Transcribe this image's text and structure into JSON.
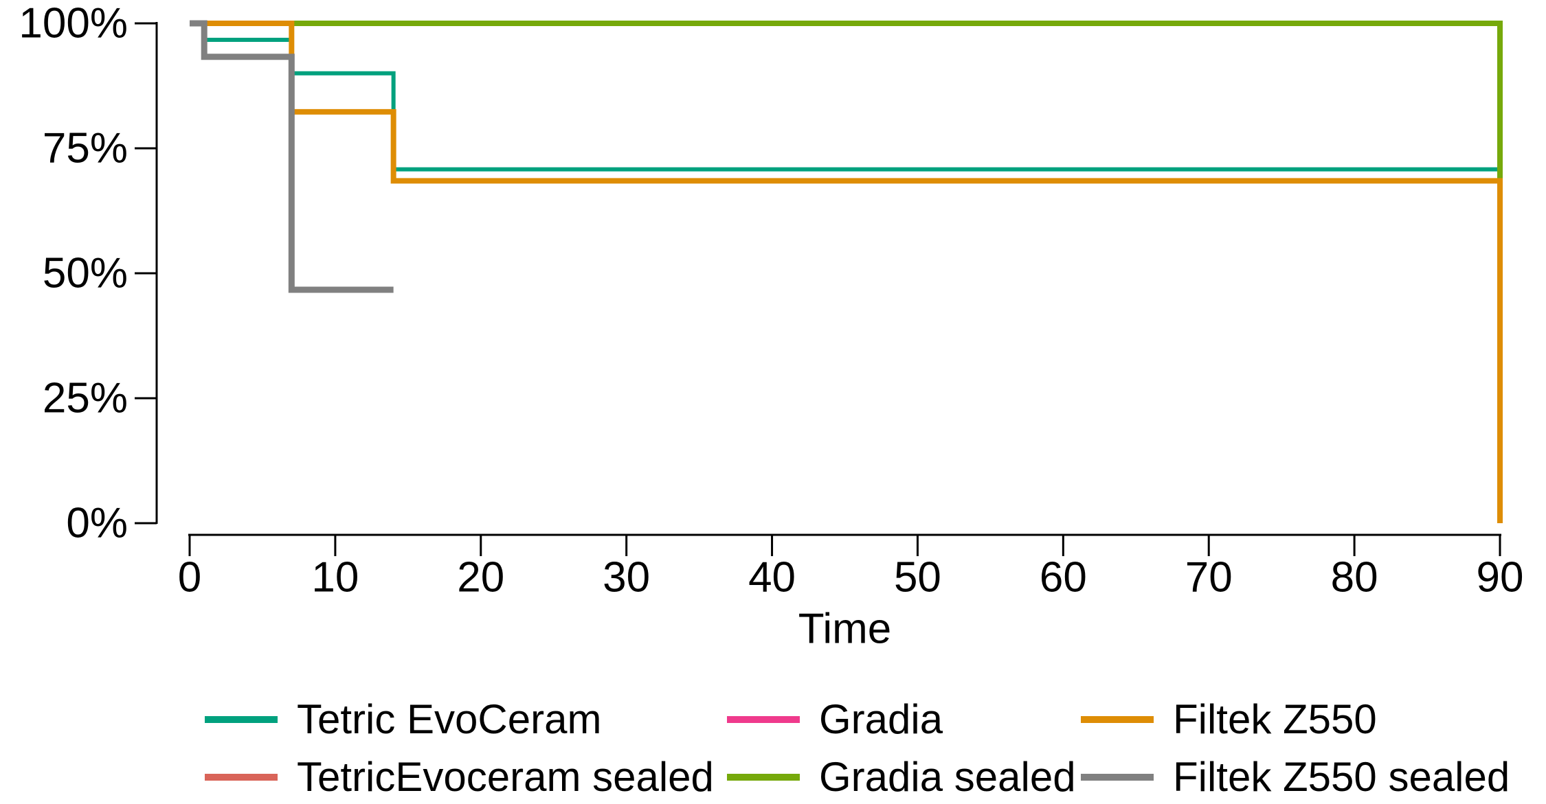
{
  "figure": {
    "type": "kaplan-meier-survival-plot",
    "background_color": "#ffffff",
    "axis_color": "#000000",
    "text_color": "#000000"
  },
  "axes": {
    "x": {
      "label": "Time",
      "range": [
        0,
        90
      ],
      "tick_values": [
        0,
        10,
        20,
        30,
        40,
        50,
        60,
        70,
        80,
        90
      ],
      "tick_labels": [
        "0",
        "10",
        "20",
        "30",
        "40",
        "50",
        "60",
        "70",
        "80",
        "90"
      ]
    },
    "y": {
      "label": "",
      "range": [
        0,
        100
      ],
      "tick_values": [
        0,
        25,
        50,
        75,
        100
      ],
      "tick_labels": [
        "0%",
        "25%",
        "50%",
        "75%",
        "100%"
      ]
    }
  },
  "legend": {
    "position": "bottom",
    "rows": 2,
    "columns": 3,
    "items": [
      {
        "label": "Tetric EvoCeram",
        "color": "#00A17E"
      },
      {
        "label": "Gradia",
        "color": "#EF3A8C"
      },
      {
        "label": "Filtek Z550",
        "color": "#DE8D05"
      },
      {
        "label": "TetricEvoceram sealed",
        "color": "#D96459"
      },
      {
        "label": "Gradia sealed",
        "color": "#76A90B"
      },
      {
        "label": "Filtek Z550 sealed",
        "color": "#808080"
      }
    ]
  },
  "chart_data": {
    "type": "line",
    "subtype": "kaplan-meier-step",
    "title": "",
    "xlabel": "Time",
    "ylabel": "",
    "xlim": [
      0,
      90
    ],
    "ylim": [
      0,
      100
    ],
    "y_unit": "percent",
    "grid": false,
    "legend_position": "bottom",
    "series": [
      {
        "name": "Tetric EvoCeram",
        "color": "#00A17E",
        "steps": [
          [
            0,
            100
          ],
          [
            1,
            96.7
          ],
          [
            7,
            90.0
          ],
          [
            14,
            70.8
          ]
        ],
        "end_time": 90,
        "final_value": 70.8
      },
      {
        "name": "TetricEvoceram sealed",
        "color": "#D96459",
        "steps": [
          [
            0,
            100
          ]
        ],
        "end_time": 90,
        "final_value": 100
      },
      {
        "name": "Gradia",
        "color": "#EF3A8C",
        "steps": [
          [
            0,
            100
          ]
        ],
        "end_time": 90,
        "final_value": 100
      },
      {
        "name": "Gradia sealed",
        "color": "#76A90B",
        "steps": [
          [
            0,
            100
          ],
          [
            90,
            68.6
          ]
        ],
        "end_time": 90,
        "final_value": 68.6
      },
      {
        "name": "Filtek Z550",
        "color": "#DE8D05",
        "steps": [
          [
            0,
            100
          ],
          [
            7,
            82.3
          ],
          [
            14,
            68.5
          ],
          [
            90,
            0
          ]
        ],
        "end_time": 90,
        "final_value": 0
      },
      {
        "name": "Filtek Z550 sealed",
        "color": "#808080",
        "steps": [
          [
            0,
            100
          ],
          [
            1,
            93.3
          ],
          [
            7,
            46.7
          ]
        ],
        "end_time": 14,
        "final_value": 46.7
      }
    ]
  }
}
